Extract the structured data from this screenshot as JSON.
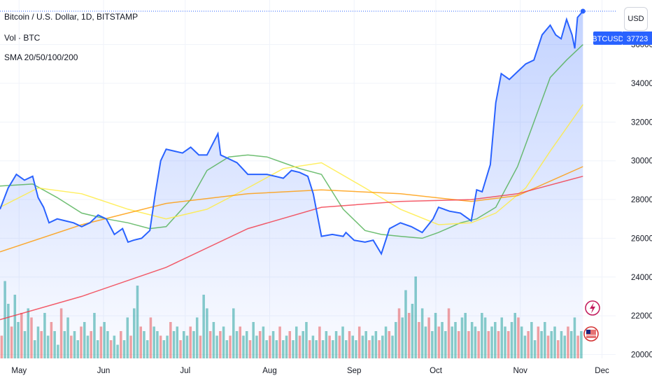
{
  "legend": {
    "title": "Bitcoin / U.S. Dollar, 1D, BITSTAMP",
    "volume": "Vol · BTC",
    "sma": "SMA 20/50/100/200"
  },
  "currency_button": "USD",
  "price_label": {
    "symbol": "BTCUSD",
    "value": "37723"
  },
  "colors": {
    "price_line": "#2962ff",
    "sma20": "#4caf50",
    "sma50": "#ffeb3b",
    "sma100": "#ff9800",
    "sma200": "#f23645",
    "vol_up": "#26a69a",
    "vol_down": "#ef5350"
  },
  "chart_data": {
    "type": "line",
    "title": "Bitcoin / U.S. Dollar, 1D, BITSTAMP",
    "xlabel": "",
    "ylabel": "",
    "x_ticks": [
      "May",
      "Jun",
      "Jul",
      "Aug",
      "Sep",
      "Oct",
      "Nov",
      "Dec"
    ],
    "y_ticks": [
      20000,
      22000,
      24000,
      26000,
      28000,
      30000,
      32000,
      34000,
      36000
    ],
    "ylim": [
      19800,
      38300
    ],
    "x_range": [
      "2023-04-24",
      "2023-12-06"
    ],
    "grid": true,
    "series": [
      {
        "name": "BTCUSD",
        "role": "price",
        "x": [
          "2023-04-24",
          "2023-04-27",
          "2023-04-30",
          "2023-05-03",
          "2023-05-06",
          "2023-05-08",
          "2023-05-10",
          "2023-05-12",
          "2023-05-15",
          "2023-05-18",
          "2023-05-21",
          "2023-05-24",
          "2023-05-27",
          "2023-05-30",
          "2023-06-02",
          "2023-06-05",
          "2023-06-08",
          "2023-06-10",
          "2023-06-12",
          "2023-06-15",
          "2023-06-18",
          "2023-06-20",
          "2023-06-22",
          "2023-06-24",
          "2023-06-27",
          "2023-06-30",
          "2023-07-03",
          "2023-07-06",
          "2023-07-09",
          "2023-07-13",
          "2023-07-14",
          "2023-07-17",
          "2023-07-20",
          "2023-07-24",
          "2023-07-27",
          "2023-07-31",
          "2023-08-03",
          "2023-08-06",
          "2023-08-09",
          "2023-08-12",
          "2023-08-15",
          "2023-08-17",
          "2023-08-20",
          "2023-08-24",
          "2023-08-28",
          "2023-08-29",
          "2023-09-01",
          "2023-09-05",
          "2023-09-08",
          "2023-09-11",
          "2023-09-14",
          "2023-09-18",
          "2023-09-22",
          "2023-09-26",
          "2023-09-30",
          "2023-10-02",
          "2023-10-06",
          "2023-10-10",
          "2023-10-14",
          "2023-10-16",
          "2023-10-18",
          "2023-10-21",
          "2023-10-23",
          "2023-10-25",
          "2023-10-28",
          "2023-10-31",
          "2023-11-03",
          "2023-11-06",
          "2023-11-09",
          "2023-11-12",
          "2023-11-14",
          "2023-11-16",
          "2023-11-18",
          "2023-11-20",
          "2023-11-21",
          "2023-11-22",
          "2023-11-24"
        ],
        "values": [
          27500,
          28600,
          29300,
          29000,
          29200,
          28100,
          27600,
          26800,
          27000,
          26900,
          26800,
          26600,
          26800,
          27200,
          27000,
          26200,
          26500,
          25800,
          25900,
          26000,
          26400,
          28300,
          30000,
          30600,
          30500,
          30400,
          30700,
          30300,
          30300,
          31400,
          30300,
          30100,
          29900,
          29300,
          29300,
          29300,
          29200,
          29100,
          29500,
          29400,
          29200,
          28300,
          26100,
          26200,
          26100,
          26300,
          25900,
          25800,
          25900,
          25200,
          26500,
          26800,
          26600,
          26300,
          27000,
          27600,
          27400,
          27300,
          26900,
          28500,
          28400,
          29800,
          33000,
          34500,
          34200,
          34600,
          35000,
          35200,
          36500,
          37000,
          36500,
          36300,
          37300,
          36500,
          35800,
          37400,
          37723
        ]
      },
      {
        "name": "SMA 20",
        "role": "sma20",
        "x": [
          "2023-04-24",
          "2023-05-06",
          "2023-05-15",
          "2023-05-24",
          "2023-06-02",
          "2023-06-10",
          "2023-06-18",
          "2023-06-24",
          "2023-07-03",
          "2023-07-09",
          "2023-07-17",
          "2023-07-24",
          "2023-07-31",
          "2023-08-06",
          "2023-08-12",
          "2023-08-20",
          "2023-08-28",
          "2023-09-05",
          "2023-09-11",
          "2023-09-18",
          "2023-09-26",
          "2023-10-02",
          "2023-10-10",
          "2023-10-16",
          "2023-10-23",
          "2023-10-31",
          "2023-11-06",
          "2023-11-12",
          "2023-11-18",
          "2023-11-24"
        ],
        "values": [
          28700,
          28800,
          28100,
          27300,
          27000,
          26800,
          26500,
          26600,
          28000,
          29500,
          30200,
          30300,
          30200,
          29900,
          29600,
          29300,
          27500,
          26400,
          26200,
          26100,
          26000,
          26300,
          26800,
          27000,
          27600,
          29700,
          32000,
          34300,
          35200,
          36000
        ]
      },
      {
        "name": "SMA 50",
        "role": "sma50",
        "x": [
          "2023-04-24",
          "2023-05-08",
          "2023-05-24",
          "2023-06-10",
          "2023-06-24",
          "2023-07-09",
          "2023-07-24",
          "2023-08-06",
          "2023-08-20",
          "2023-09-05",
          "2023-09-18",
          "2023-10-02",
          "2023-10-14",
          "2023-10-23",
          "2023-11-03",
          "2023-11-12",
          "2023-11-24"
        ],
        "values": [
          27600,
          28600,
          28300,
          27500,
          27000,
          27500,
          28600,
          29600,
          29900,
          28600,
          27500,
          26700,
          26800,
          27300,
          28600,
          30500,
          32900
        ]
      },
      {
        "name": "SMA 100",
        "role": "sma100",
        "x": [
          "2023-04-24",
          "2023-05-24",
          "2023-06-24",
          "2023-07-24",
          "2023-08-20",
          "2023-09-18",
          "2023-10-14",
          "2023-10-31",
          "2023-11-24"
        ],
        "values": [
          25300,
          26700,
          27800,
          28300,
          28500,
          28300,
          27900,
          28200,
          29700
        ]
      },
      {
        "name": "SMA 200",
        "role": "sma200",
        "x": [
          "2023-04-24",
          "2023-05-24",
          "2023-06-24",
          "2023-07-24",
          "2023-08-20",
          "2023-09-18",
          "2023-10-14",
          "2023-10-31",
          "2023-11-24"
        ],
        "values": [
          21800,
          23000,
          24500,
          26500,
          27600,
          27900,
          28000,
          28300,
          29200
        ]
      }
    ],
    "volume": {
      "name": "Vol · BTC",
      "note": "relative bar heights 0-1",
      "bars": [
        0.25,
        0.85,
        0.6,
        0.35,
        0.7,
        0.4,
        0.5,
        0.3,
        0.55,
        0.45,
        0.2,
        0.35,
        0.3,
        0.5,
        0.25,
        0.4,
        0.3,
        0.15,
        0.55,
        0.3,
        0.45,
        0.25,
        0.3,
        0.2,
        0.35,
        0.4,
        0.25,
        0.3,
        0.5,
        0.2,
        0.35,
        0.4,
        0.3,
        0.2,
        0.25,
        0.15,
        0.3,
        0.2,
        0.45,
        0.25,
        0.55,
        0.8,
        0.35,
        0.3,
        0.2,
        0.45,
        0.35,
        0.3,
        0.25,
        0.2,
        0.25,
        0.4,
        0.3,
        0.35,
        0.2,
        0.3,
        0.25,
        0.35,
        0.3,
        0.45,
        0.25,
        0.7,
        0.55,
        0.3,
        0.4,
        0.25,
        0.3,
        0.35,
        0.2,
        0.25,
        0.55,
        0.3,
        0.35,
        0.25,
        0.3,
        0.2,
        0.4,
        0.25,
        0.3,
        0.35,
        0.2,
        0.25,
        0.3,
        0.2,
        0.35,
        0.2,
        0.25,
        0.3,
        0.2,
        0.35,
        0.25,
        0.3,
        0.4,
        0.2,
        0.25,
        0.2,
        0.35,
        0.2,
        0.3,
        0.25,
        0.2,
        0.3,
        0.25,
        0.35,
        0.2,
        0.3,
        0.25,
        0.2,
        0.35,
        0.25,
        0.3,
        0.2,
        0.25,
        0.3,
        0.2,
        0.25,
        0.35,
        0.3,
        0.25,
        0.4,
        0.55,
        0.45,
        0.75,
        0.5,
        0.6,
        0.9,
        0.4,
        0.55,
        0.35,
        0.45,
        0.3,
        0.5,
        0.35,
        0.4,
        0.3,
        0.55,
        0.35,
        0.4,
        0.3,
        0.45,
        0.5,
        0.3,
        0.4,
        0.35,
        0.3,
        0.5,
        0.45,
        0.3,
        0.35,
        0.4,
        0.3,
        0.45,
        0.35,
        0.3,
        0.4,
        0.5,
        0.45,
        0.35,
        0.25,
        0.3,
        0.4,
        0.2,
        0.35,
        0.3,
        0.4,
        0.25,
        0.3,
        0.35,
        0.2,
        0.3,
        0.25,
        0.35,
        0.3,
        0.45,
        0.25,
        0.3
      ]
    }
  }
}
